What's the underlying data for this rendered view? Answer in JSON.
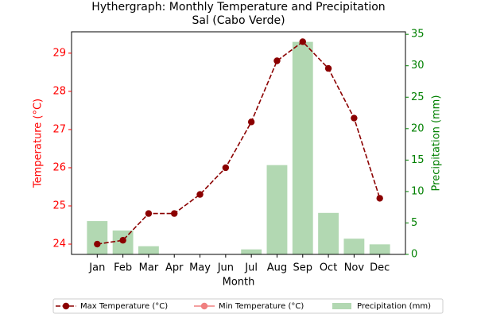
{
  "chart_data": {
    "type": "line",
    "title": "Hythergraph: Monthly Temperature and Precipitation",
    "subtitle": "Sal (Cabo Verde)",
    "x_label": "Month",
    "y_label": "Temperature (°C)",
    "y2_label": "Precipitation (mm)",
    "y_color": "red",
    "y2_color": "green",
    "categories": [
      "Jan",
      "Feb",
      "Mar",
      "Apr",
      "May",
      "Jun",
      "Jul",
      "Aug",
      "Sep",
      "Oct",
      "Nov",
      "Dec"
    ],
    "series": [
      {
        "name": "Max Temperature (°C)",
        "type": "line",
        "color": "#8b0000",
        "dashed": true,
        "axis": "y",
        "values": [
          24.0,
          24.1,
          24.8,
          24.8,
          25.3,
          26.0,
          27.2,
          28.8,
          29.3,
          28.6,
          27.3,
          25.2
        ]
      },
      {
        "name": "Min Temperature (°C)",
        "type": "line",
        "color": "#f08080",
        "dashed": false,
        "axis": "y",
        "values": [
          null,
          null,
          null,
          null,
          null,
          null,
          null,
          null,
          null,
          null,
          null,
          null
        ]
      },
      {
        "name": "Precipitation (mm)",
        "type": "bar",
        "color": "#b2d8b2",
        "axis": "y2",
        "values": [
          5.3,
          3.8,
          1.3,
          0,
          0,
          0,
          0.8,
          14.2,
          33.8,
          6.6,
          2.5,
          1.6
        ]
      }
    ],
    "ylim": [
      23.73,
      29.56
    ],
    "yticks": [
      24,
      25,
      26,
      27,
      28,
      29
    ],
    "y2lim": [
      0,
      35.4
    ],
    "y2ticks": [
      0,
      5,
      10,
      15,
      20,
      25,
      30,
      35
    ],
    "legend": "bottom"
  }
}
